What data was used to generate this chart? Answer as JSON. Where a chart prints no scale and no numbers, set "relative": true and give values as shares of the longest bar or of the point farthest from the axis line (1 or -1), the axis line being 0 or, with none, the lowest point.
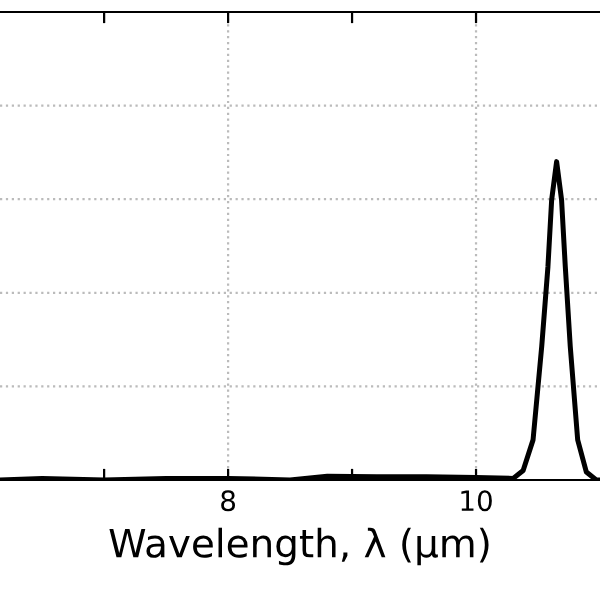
{
  "chart_data": {
    "type": "line",
    "relative": true,
    "xlabel": "Wavelength, λ (μm)",
    "xlim": [
      6.16,
      11.0
    ],
    "xticks": [
      {
        "value": 7,
        "label": null
      },
      8,
      {
        "value": 9,
        "label": null
      },
      10
    ],
    "tick_labels": "x",
    "grid": true,
    "line_style": "solid",
    "marker": "none",
    "series": [
      {
        "color": "#000000",
        "x": [
          6.16,
          6.5,
          7.0,
          7.5,
          8.0,
          8.5,
          8.8,
          9.2,
          9.6,
          10.0,
          10.3,
          10.38,
          10.46,
          10.53,
          10.58,
          10.61,
          10.65,
          10.69,
          10.72,
          10.76,
          10.82,
          10.89,
          10.97,
          11.0
        ],
        "values": [
          0.0,
          0.005,
          0.0,
          0.005,
          0.005,
          0.0,
          0.012,
          0.01,
          0.01,
          0.008,
          0.005,
          0.03,
          0.126,
          0.42,
          0.67,
          0.88,
          1.0,
          0.88,
          0.67,
          0.42,
          0.126,
          0.025,
          0.0,
          0.0
        ]
      }
    ]
  }
}
